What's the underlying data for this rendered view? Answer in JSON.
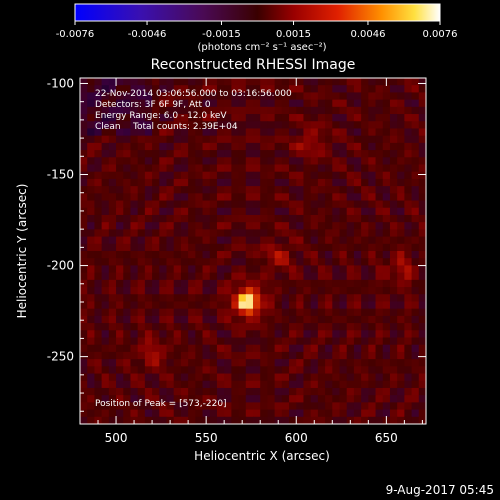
{
  "colorbar": {
    "ticks": [
      "-0.0076",
      "-0.0046",
      "-0.0015",
      "0.0015",
      "0.0046",
      "0.0076"
    ],
    "tick_values": [
      -0.0076,
      -0.0046,
      -0.0015,
      0.0015,
      0.0046,
      0.0076
    ],
    "range": [
      -0.0076,
      0.0076
    ],
    "units_label": "(photons cm⁻² s⁻¹ asec⁻²)",
    "colormap": "blue-purple-red-yellow-white"
  },
  "chart_data": {
    "type": "heatmap",
    "title": "Reconstructed RHESSI Image",
    "xlabel": "Heliocentric X (arcsec)",
    "ylabel": "Heliocentric Y (arcsec)",
    "xlim": [
      480,
      672
    ],
    "ylim": [
      -287,
      -97
    ],
    "xticks": [
      500,
      550,
      600,
      650
    ],
    "yticks": [
      -100,
      -150,
      -200,
      -250
    ],
    "peak_position": [
      573,
      -220
    ],
    "annotations": {
      "time_range": "22-Nov-2014 03:06:56.000 to 03:16:56.000",
      "detectors": "Detectors: 3F 6F 9F, Att 0",
      "energy": "Energy Range: 6.0 - 12.0 keV",
      "clean_label": "Clean",
      "total_counts": "Total counts: 2.39E+04",
      "peak_label": "Position of Peak = [573,-220]"
    },
    "secondary_sources": [
      {
        "x": 658,
        "y": -202
      },
      {
        "x": 520,
        "y": -248
      },
      {
        "x": 608,
        "y": -132
      },
      {
        "x": 590,
        "y": -195
      }
    ]
  },
  "footer": {
    "date": "9-Aug-2017 05:45"
  }
}
